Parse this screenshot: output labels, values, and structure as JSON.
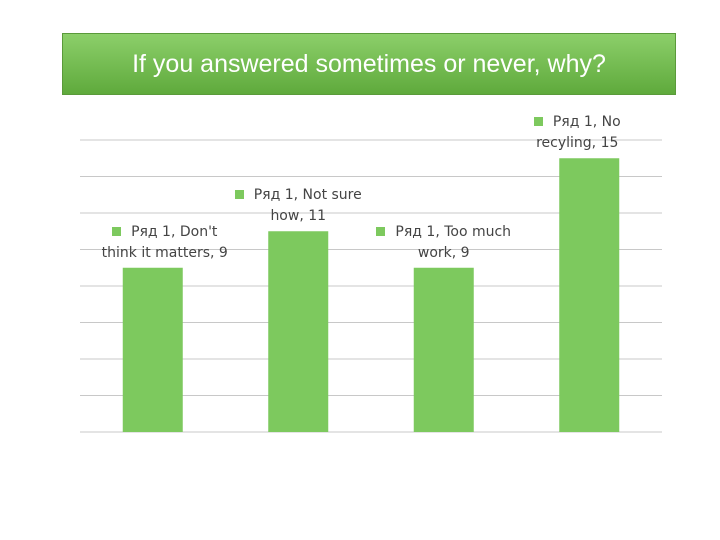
{
  "chart_data": {
    "type": "bar",
    "title": "If you answered sometimes or never, why?",
    "values": [
      9,
      11,
      9,
      15
    ],
    "value_labels": [
      "Ряд 1, Don't think it matters, 9",
      "Ряд 1, Not sure how, 11",
      "Ряд 1, Too much work, 9",
      "Ряд 1, No recyling, 15"
    ],
    "color": "#7dc95e",
    "ylim": [
      0,
      16
    ],
    "yticks": [
      0,
      2,
      4,
      6,
      8,
      10,
      12,
      14,
      16
    ],
    "grid": true
  }
}
